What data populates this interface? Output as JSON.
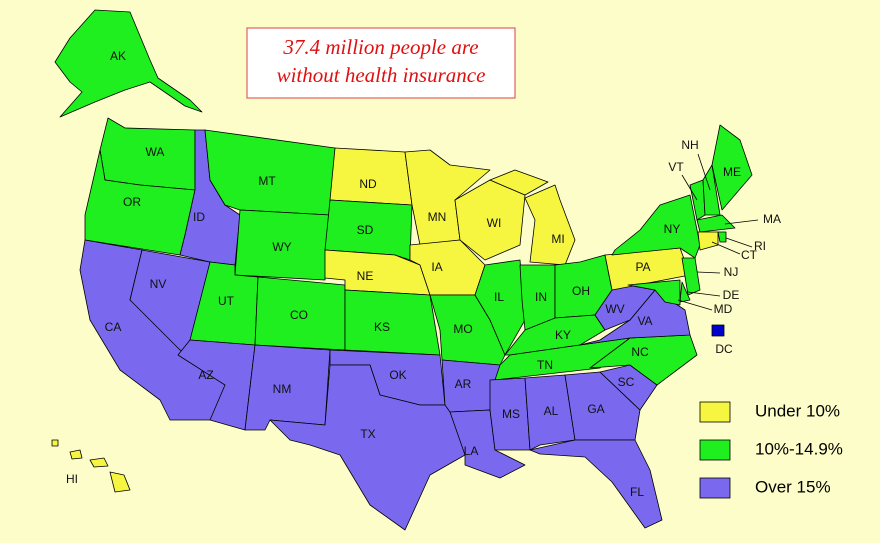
{
  "title": [
    "37.4 million people are",
    "without health insurance"
  ],
  "legend": [
    {
      "name": "Under 10%",
      "color": "#f6f640"
    },
    {
      "name": "10%-14.9%",
      "color": "#1fef1f"
    },
    {
      "name": "Over 15%",
      "color": "#7a69ee"
    }
  ],
  "states": [
    {
      "label": "AK",
      "category": 1
    },
    {
      "label": "HI",
      "category": 0
    },
    {
      "label": "WA",
      "category": 1
    },
    {
      "label": "OR",
      "category": 1
    },
    {
      "label": "CA",
      "category": 2
    },
    {
      "label": "NV",
      "category": 2
    },
    {
      "label": "ID",
      "category": 2
    },
    {
      "label": "MT",
      "category": 1
    },
    {
      "label": "WY",
      "category": 1
    },
    {
      "label": "UT",
      "category": 1
    },
    {
      "label": "CO",
      "category": 1
    },
    {
      "label": "AZ",
      "category": 2
    },
    {
      "label": "NM",
      "category": 2
    },
    {
      "label": "ND",
      "category": 0
    },
    {
      "label": "SD",
      "category": 1
    },
    {
      "label": "NE",
      "category": 0
    },
    {
      "label": "KS",
      "category": 1
    },
    {
      "label": "OK",
      "category": 2
    },
    {
      "label": "TX",
      "category": 2
    },
    {
      "label": "MN",
      "category": 0
    },
    {
      "label": "IA",
      "category": 0
    },
    {
      "label": "MO",
      "category": 1
    },
    {
      "label": "AR",
      "category": 2
    },
    {
      "label": "LA",
      "category": 2
    },
    {
      "label": "WI",
      "category": 0
    },
    {
      "label": "MI",
      "category": 0
    },
    {
      "label": "IL",
      "category": 1
    },
    {
      "label": "IN",
      "category": 1
    },
    {
      "label": "OH",
      "category": 1
    },
    {
      "label": "KY",
      "category": 1
    },
    {
      "label": "TN",
      "category": 1
    },
    {
      "label": "MS",
      "category": 2
    },
    {
      "label": "AL",
      "category": 2
    },
    {
      "label": "GA",
      "category": 2
    },
    {
      "label": "FL",
      "category": 2
    },
    {
      "label": "SC",
      "category": 2
    },
    {
      "label": "NC",
      "category": 1
    },
    {
      "label": "VA",
      "category": 2
    },
    {
      "label": "WV",
      "category": 2
    },
    {
      "label": "PA",
      "category": 0
    },
    {
      "label": "NY",
      "category": 1
    },
    {
      "label": "NJ",
      "category": 1
    },
    {
      "label": "DE",
      "category": 1
    },
    {
      "label": "MD",
      "category": 1
    },
    {
      "label": "VT",
      "category": 1
    },
    {
      "label": "NH",
      "category": 1
    },
    {
      "label": "ME",
      "category": 1
    },
    {
      "label": "MA",
      "category": 1
    },
    {
      "label": "RI",
      "category": 1
    },
    {
      "label": "CT",
      "category": 0
    },
    {
      "label": "DC",
      "color": "#0000cc"
    }
  ]
}
